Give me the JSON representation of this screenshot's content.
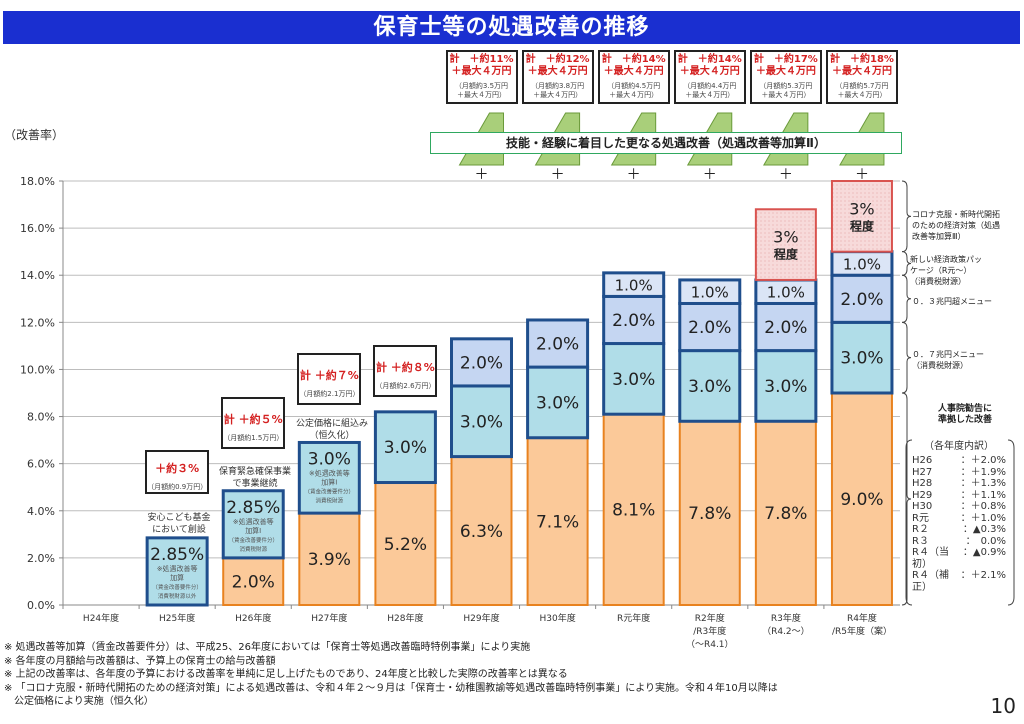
{
  "title": "保育士等の処遇改善の推移",
  "y_unit_label": "（改善率）",
  "totals_top": [
    {
      "line1": "計　＋約11%",
      "line2": "＋最大４万円",
      "line3": "（月額約3.5万円",
      "line4": "＋最大４万円）"
    },
    {
      "line1": "計　＋約12%",
      "line2": "＋最大４万円",
      "line3": "（月額約3.8万円",
      "line4": "＋最大４万円）"
    },
    {
      "line1": "計　＋約14%",
      "line2": "＋最大４万円",
      "line3": "（月額約4.5万円",
      "line4": "＋最大４万円）"
    },
    {
      "line1": "計　＋約14%",
      "line2": "＋最大４万円",
      "line3": "（月額約4.4万円",
      "line4": "＋最大４万円）"
    },
    {
      "line1": "計　＋約17%",
      "line2": "＋最大４万円",
      "line3": "（月額約5.3万円",
      "line4": "＋最大４万円）"
    },
    {
      "line1": "計　＋約18%",
      "line2": "＋最大４万円",
      "line3": "（月額約5.7万円",
      "line4": "＋最大４万円）"
    }
  ],
  "skill_band": "技能・経験に着目した更なる処遇改善（処遇改善等加算Ⅱ）",
  "plus_sign": "＋",
  "small_totals": [
    {
      "red": "＋約３%",
      "gray": "（月額約0.9万円）"
    },
    {
      "red": "計 ＋約５%",
      "gray": "（月額約1.5万円）"
    },
    {
      "red": "計 ＋約７%",
      "gray": "（月額約2.1万円）"
    },
    {
      "red": "計 ＋約８%",
      "gray": "（月額約2.6万円）"
    }
  ],
  "bar_notes": {
    "h25_above": [
      "安心こども基金",
      "において創設"
    ],
    "h26_above": [
      "保育緊急確保事業",
      "で事業継続"
    ],
    "h27_above": [
      "公定価格に組込み",
      "（恒久化）"
    ],
    "h25_sub": [
      "※処遇改善等",
      "加算",
      "（賃金改善要件分）",
      "消費税財源以外"
    ],
    "h26_sub": [
      "※処遇改善等",
      "加算Ⅰ",
      "（賃金改善要件分）",
      "消費税財源"
    ],
    "h27_sub": [
      "※処遇改善等",
      "加算Ⅰ",
      "（賃金改善要件分）",
      "消費税財源"
    ]
  },
  "side_notes": {
    "corona": [
      "コロナ克服・新時代開拓",
      "のための経済対策（処遇",
      "改善等加算Ⅲ）"
    ],
    "new_package": [
      "新しい経済政策パッ",
      "ケージ（R元～）",
      "（消費税財源）"
    ],
    "menu_03": [
      "０．３兆円超メニュー"
    ],
    "menu_07": [
      "０．７兆円メニュー",
      "（消費税財源）"
    ],
    "jinjiin": [
      "人事院勧告に",
      "準拠した改善"
    ]
  },
  "breakdown": {
    "header": "（各年度内訳）",
    "rows": [
      {
        "year": "H26",
        "value": "：＋2.0%"
      },
      {
        "year": "H27",
        "value": "：＋1.9%"
      },
      {
        "year": "H28",
        "value": "：＋1.3%"
      },
      {
        "year": "H29",
        "value": "：＋1.1%"
      },
      {
        "year": "H30",
        "value": "：＋0.8%"
      },
      {
        "year": "R元",
        "value": "：＋1.0%"
      },
      {
        "year": "R２",
        "value": "：▲0.3%"
      },
      {
        "year": "R３",
        "value": "：　0.0%"
      },
      {
        "year": "R４（当初）",
        "value": "：▲0.9%"
      },
      {
        "year": "R４（補正）",
        "value": "：＋2.1%"
      }
    ]
  },
  "footnotes": [
    "※ 処遇改善等加算（賃金改善要件分）は、平成25、26年度においては「保育士等処遇改善臨時特例事業」により実施",
    "※ 各年度の月額給与改善額は、予算上の保育士の給与改善額",
    "※ 上記の改善率は、各年度の予算における改善率を単純に足し上げたものであり、24年度と比較した実際の改善率とは異なる",
    "※ 「コロナ克服・新時代開拓のための経済対策」による処遇改善は、令和４年２～９月は「保育士・幼稚園教諭等処遇改善臨時特例事業」により実施。令和４年10月以降は",
    "　公定価格により実施（恒久化）"
  ],
  "page_number": "10",
  "colors": {
    "title_bg": "#1a2fd0",
    "jinjiin": "#fbc999",
    "jinjiin_border": "#e8821f",
    "kasan_light_blue": "#b0dde8",
    "menu_03": "#c5d6f2",
    "package_r1": "#dbe5f6",
    "corona": "#f7dada",
    "corona_border": "#d9534f",
    "blue_border": "#1f4e8c",
    "accent_red": "#d42020",
    "green_shape": "#a9cf7a"
  },
  "chart_data": {
    "type": "bar",
    "stacked": true,
    "title": "保育士等の処遇改善の推移",
    "ylabel": "（改善率）",
    "xlabel": "",
    "ylim": [
      0,
      18
    ],
    "yticks": [
      "0.0%",
      "2.0%",
      "4.0%",
      "6.0%",
      "8.0%",
      "10.0%",
      "12.0%",
      "14.0%",
      "16.0%",
      "18.0%"
    ],
    "grid": true,
    "categories": [
      "H24年度",
      "H25年度",
      "H26年度",
      "H27年度",
      "H28年度",
      "H29年度",
      "H30年度",
      "R元年度",
      "R2年度/R3年度(～R4.1)",
      "R3年度(R4.2～)",
      "R4年度/R5年度(案)"
    ],
    "category_lines": [
      [
        "H24年度"
      ],
      [
        "H25年度"
      ],
      [
        "H26年度"
      ],
      [
        "H27年度"
      ],
      [
        "H28年度"
      ],
      [
        "H29年度"
      ],
      [
        "H30年度"
      ],
      [
        "R元年度"
      ],
      [
        "R2年度",
        "/R3年度",
        "（～R4.1）"
      ],
      [
        "R3年度",
        "（R4.2～）"
      ],
      [
        "R4年度",
        "/R5年度（案）"
      ]
    ],
    "series": [
      {
        "name": "人事院勧告に準拠した改善",
        "key": "jinjiin",
        "values": [
          0,
          0,
          2.0,
          3.9,
          5.2,
          6.3,
          7.1,
          8.1,
          7.8,
          7.8,
          9.0
        ],
        "labels": [
          "",
          "",
          "2.0%",
          "3.9%",
          "5.2%",
          "6.3%",
          "7.1%",
          "8.1%",
          "7.8%",
          "7.8%",
          "9.0%"
        ]
      },
      {
        "name": "処遇改善等加算 / 0.7兆円メニュー",
        "key": "kasan",
        "values": [
          0,
          2.85,
          2.85,
          3.0,
          3.0,
          3.0,
          3.0,
          3.0,
          3.0,
          3.0,
          3.0
        ],
        "labels": [
          "",
          "2.85%",
          "2.85%",
          "3.0%",
          "3.0%",
          "3.0%",
          "3.0%",
          "3.0%",
          "3.0%",
          "3.0%",
          "3.0%"
        ]
      },
      {
        "name": "0.3兆円超メニュー",
        "key": "menu_03",
        "values": [
          0,
          0,
          0,
          0,
          0,
          2.0,
          2.0,
          2.0,
          2.0,
          2.0,
          2.0
        ],
        "labels": [
          "",
          "",
          "",
          "",
          "",
          "2.0%",
          "2.0%",
          "2.0%",
          "2.0%",
          "2.0%",
          "2.0%"
        ]
      },
      {
        "name": "新しい経済政策パッケージ（R元～）",
        "key": "package_r1",
        "values": [
          0,
          0,
          0,
          0,
          0,
          0,
          0,
          1.0,
          1.0,
          1.0,
          1.0
        ],
        "labels": [
          "",
          "",
          "",
          "",
          "",
          "",
          "",
          "1.0%",
          "1.0%",
          "1.0%",
          "1.0%"
        ]
      },
      {
        "name": "コロナ克服・新時代開拓のための経済対策（処遇改善等加算Ⅲ）",
        "key": "corona",
        "values": [
          0,
          0,
          0,
          0,
          0,
          0,
          0,
          0,
          0,
          3.0,
          3.0
        ],
        "labels": [
          "",
          "",
          "",
          "",
          "",
          "",
          "",
          "",
          "",
          "3%\n程度",
          "3%\n程度"
        ]
      }
    ]
  }
}
